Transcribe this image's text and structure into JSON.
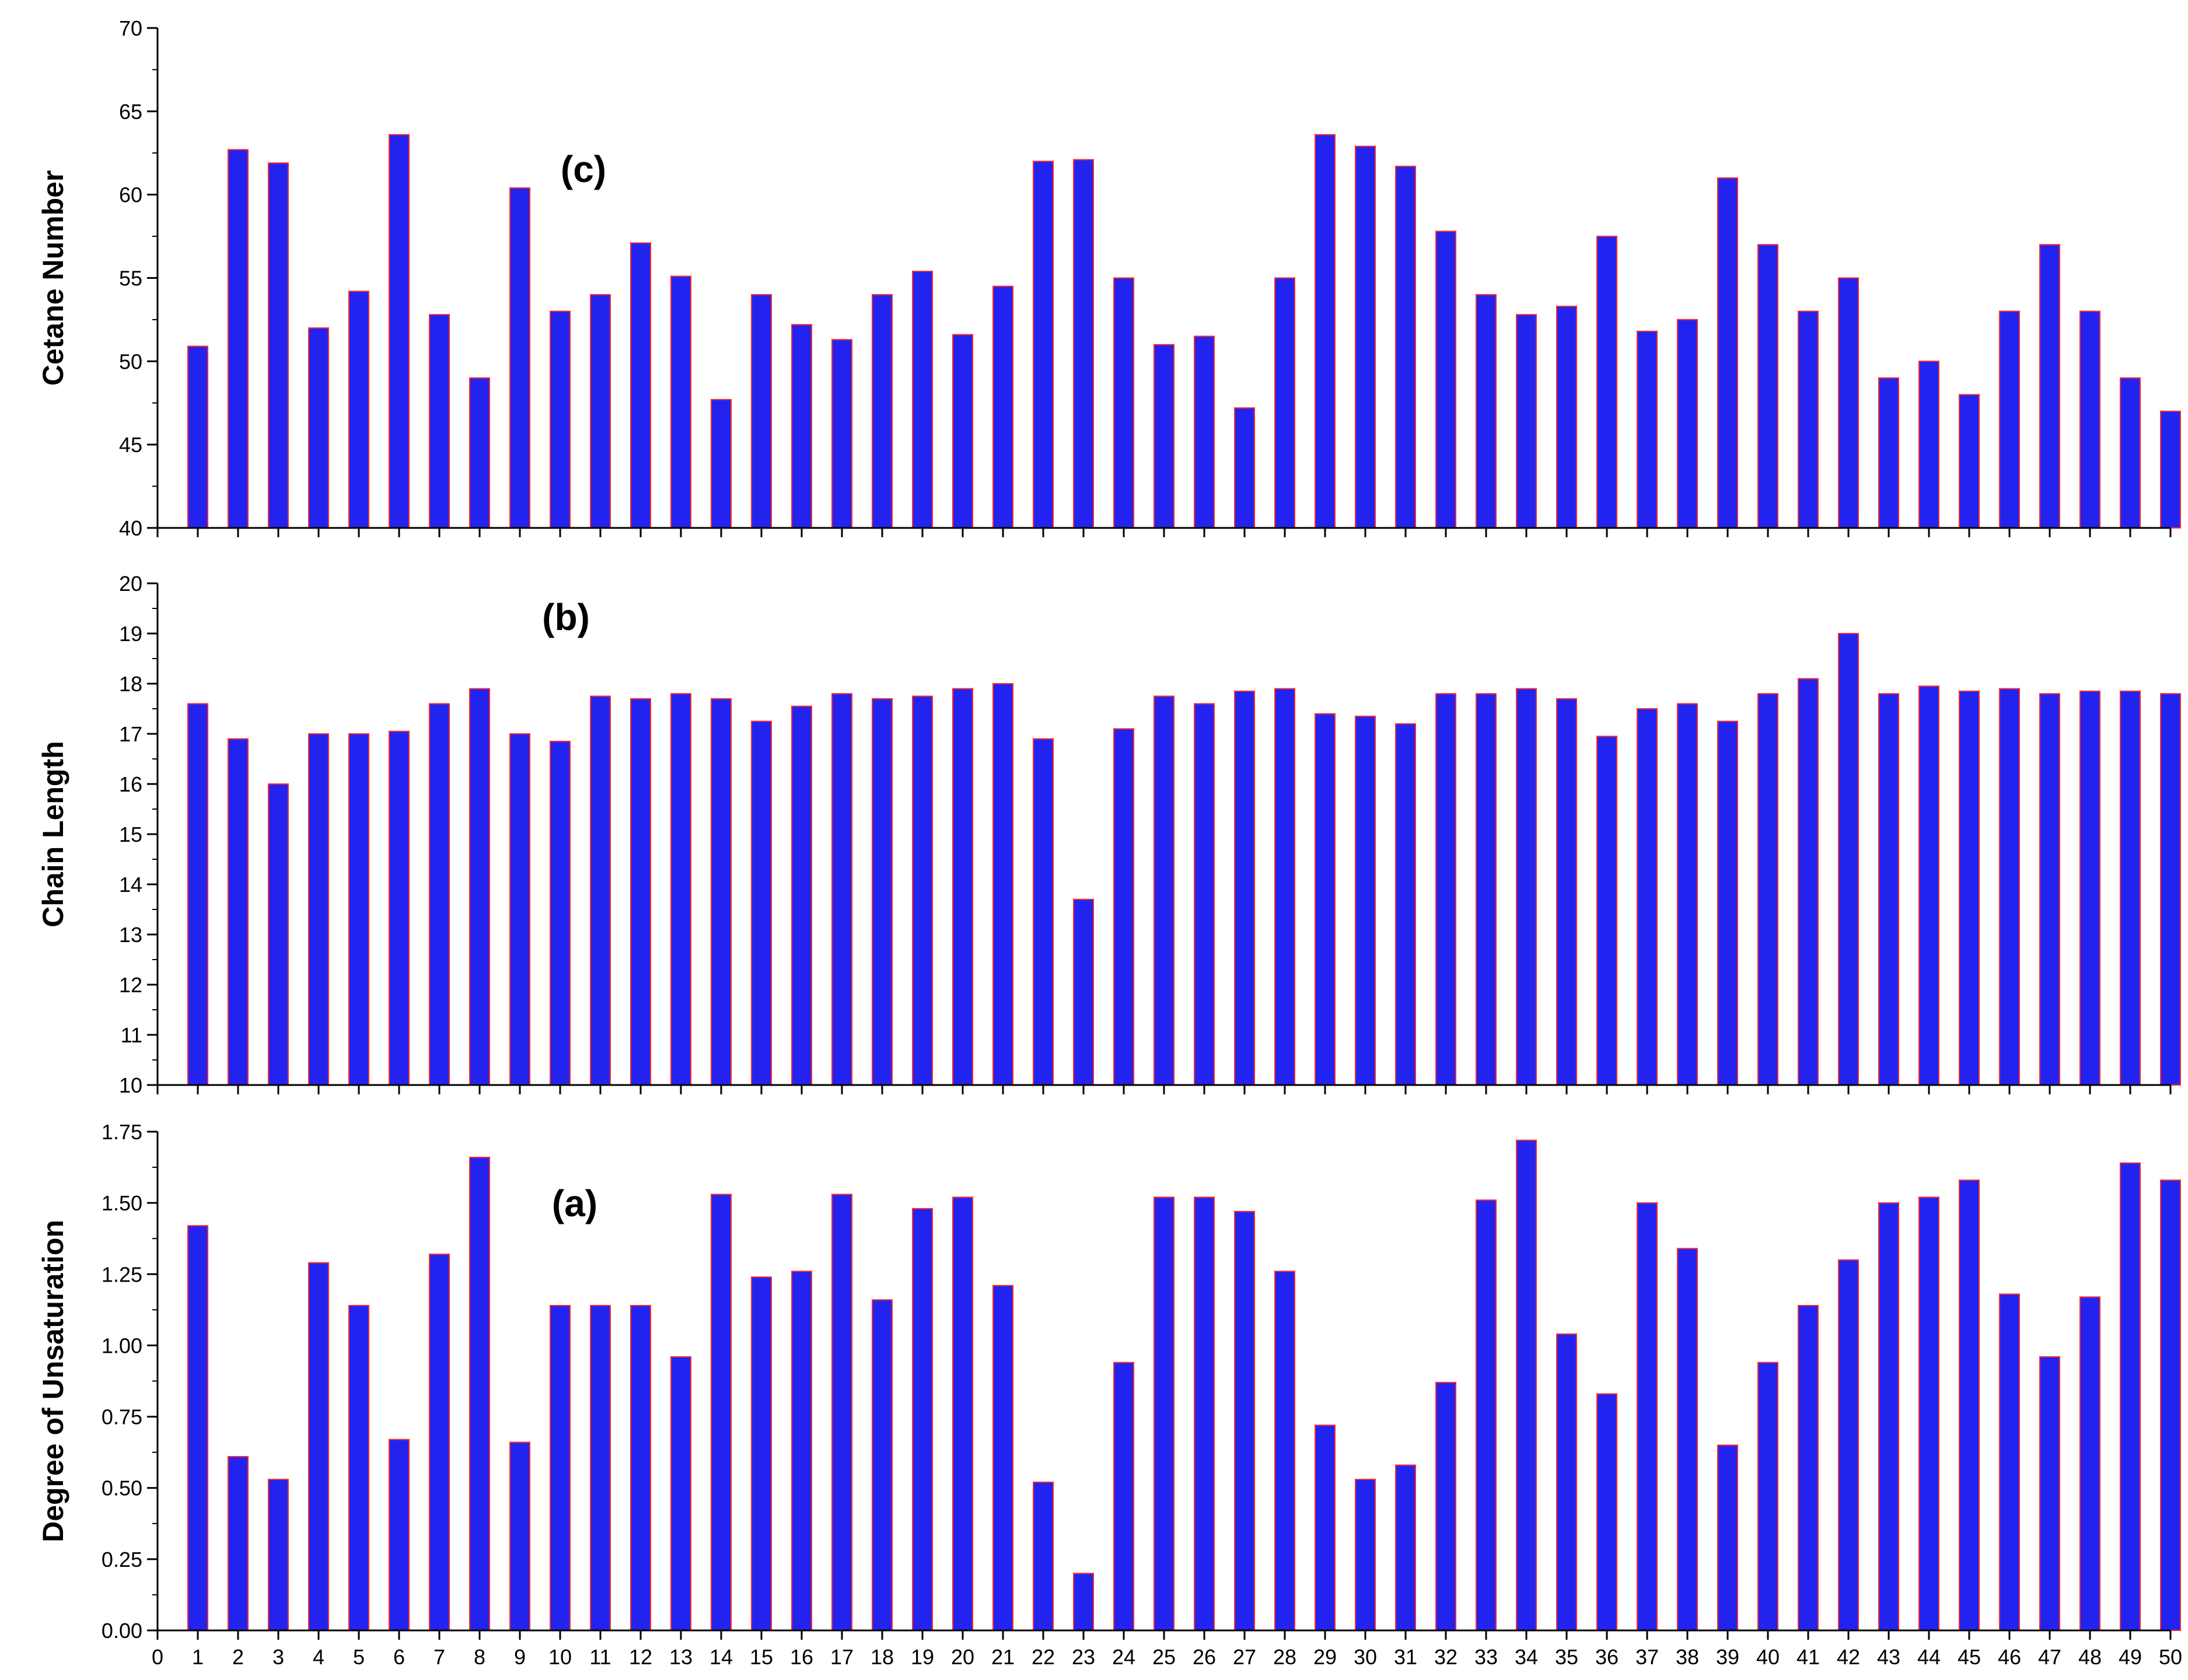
{
  "style": {
    "bar_fill": "#2323f0",
    "bar_stroke": "#ff2a2a",
    "axis_color": "#000000"
  },
  "chart_data": [
    {
      "type": "bar",
      "panel_label": "(c)",
      "ylabel": "Cetane Number",
      "ylim": [
        40,
        70
      ],
      "yticks": [
        40,
        45,
        50,
        55,
        60,
        65,
        70
      ],
      "y_minor_step": 2.5,
      "x": [
        1,
        2,
        3,
        4,
        5,
        6,
        7,
        8,
        9,
        10,
        11,
        12,
        13,
        14,
        15,
        16,
        17,
        18,
        19,
        20,
        21,
        22,
        23,
        24,
        25,
        26,
        27,
        28,
        29,
        30,
        31,
        32,
        33,
        34,
        35,
        36,
        37,
        38,
        39,
        40,
        41,
        42,
        43,
        44,
        45,
        46,
        47,
        48,
        49,
        50
      ],
      "values": [
        50.9,
        62.7,
        61.9,
        52.0,
        54.2,
        63.6,
        52.8,
        49.0,
        60.4,
        53.0,
        54.0,
        57.1,
        55.1,
        47.7,
        54.0,
        52.2,
        51.3,
        54.0,
        55.4,
        51.6,
        54.5,
        62.0,
        62.1,
        55.0,
        51.0,
        51.5,
        47.2,
        55.0,
        63.6,
        62.9,
        61.7,
        57.8,
        54.0,
        52.8,
        53.3,
        57.5,
        51.8,
        52.5,
        61.0,
        57.0,
        53.0,
        55.0,
        49.0,
        50.0,
        48.0,
        53.0,
        57.0,
        53.0,
        49.0,
        47.0
      ]
    },
    {
      "type": "bar",
      "panel_label": "(b)",
      "ylabel": "Chain Length",
      "ylim": [
        10,
        20
      ],
      "yticks": [
        10,
        11,
        12,
        13,
        14,
        15,
        16,
        17,
        18,
        19,
        20
      ],
      "y_minor_step": 0.5,
      "x": [
        1,
        2,
        3,
        4,
        5,
        6,
        7,
        8,
        9,
        10,
        11,
        12,
        13,
        14,
        15,
        16,
        17,
        18,
        19,
        20,
        21,
        22,
        23,
        24,
        25,
        26,
        27,
        28,
        29,
        30,
        31,
        32,
        33,
        34,
        35,
        36,
        37,
        38,
        39,
        40,
        41,
        42,
        43,
        44,
        45,
        46,
        47,
        48,
        49,
        50
      ],
      "values": [
        17.6,
        16.9,
        16.0,
        17.0,
        17.0,
        17.05,
        17.6,
        17.9,
        17.0,
        16.85,
        17.75,
        17.7,
        17.8,
        17.7,
        17.25,
        17.55,
        17.8,
        17.7,
        17.75,
        17.9,
        18.0,
        16.9,
        13.7,
        17.1,
        17.75,
        17.6,
        17.85,
        17.9,
        17.4,
        17.35,
        17.2,
        17.8,
        17.8,
        17.9,
        17.7,
        16.95,
        17.5,
        17.6,
        17.25,
        17.8,
        18.1,
        19.0,
        17.8,
        17.95,
        17.85,
        17.9,
        17.8,
        17.85,
        17.85,
        17.8
      ]
    },
    {
      "type": "bar",
      "panel_label": "(a)",
      "ylabel": "Degree of Unsaturation",
      "ylim": [
        0,
        1.75
      ],
      "yticks": [
        "0.00",
        "0.25",
        "0.50",
        "0.75",
        "1.00",
        "1.25",
        "1.50",
        "1.75"
      ],
      "y_minor_step": 0.125,
      "xlim": [
        0,
        50
      ],
      "xticks": [
        0,
        1,
        2,
        3,
        4,
        5,
        6,
        7,
        8,
        9,
        10,
        11,
        12,
        13,
        14,
        15,
        16,
        17,
        18,
        19,
        20,
        21,
        22,
        23,
        24,
        25,
        26,
        27,
        28,
        29,
        30,
        31,
        32,
        33,
        34,
        35,
        36,
        37,
        38,
        39,
        40,
        41,
        42,
        43,
        44,
        45,
        46,
        47,
        48,
        49,
        50
      ],
      "x": [
        1,
        2,
        3,
        4,
        5,
        6,
        7,
        8,
        9,
        10,
        11,
        12,
        13,
        14,
        15,
        16,
        17,
        18,
        19,
        20,
        21,
        22,
        23,
        24,
        25,
        26,
        27,
        28,
        29,
        30,
        31,
        32,
        33,
        34,
        35,
        36,
        37,
        38,
        39,
        40,
        41,
        42,
        43,
        44,
        45,
        46,
        47,
        48,
        49,
        50
      ],
      "values": [
        1.42,
        0.61,
        0.53,
        1.29,
        1.14,
        0.67,
        1.32,
        1.66,
        0.66,
        1.14,
        1.14,
        1.14,
        0.96,
        1.53,
        1.24,
        1.26,
        1.53,
        1.16,
        1.48,
        1.52,
        1.21,
        0.52,
        0.2,
        0.94,
        1.52,
        1.52,
        1.47,
        1.26,
        0.72,
        0.53,
        0.58,
        0.87,
        1.51,
        1.72,
        1.04,
        0.83,
        1.5,
        1.34,
        0.65,
        0.94,
        1.14,
        1.3,
        1.5,
        1.52,
        1.58,
        1.18,
        0.96,
        1.17,
        1.64,
        1.58
      ]
    }
  ]
}
